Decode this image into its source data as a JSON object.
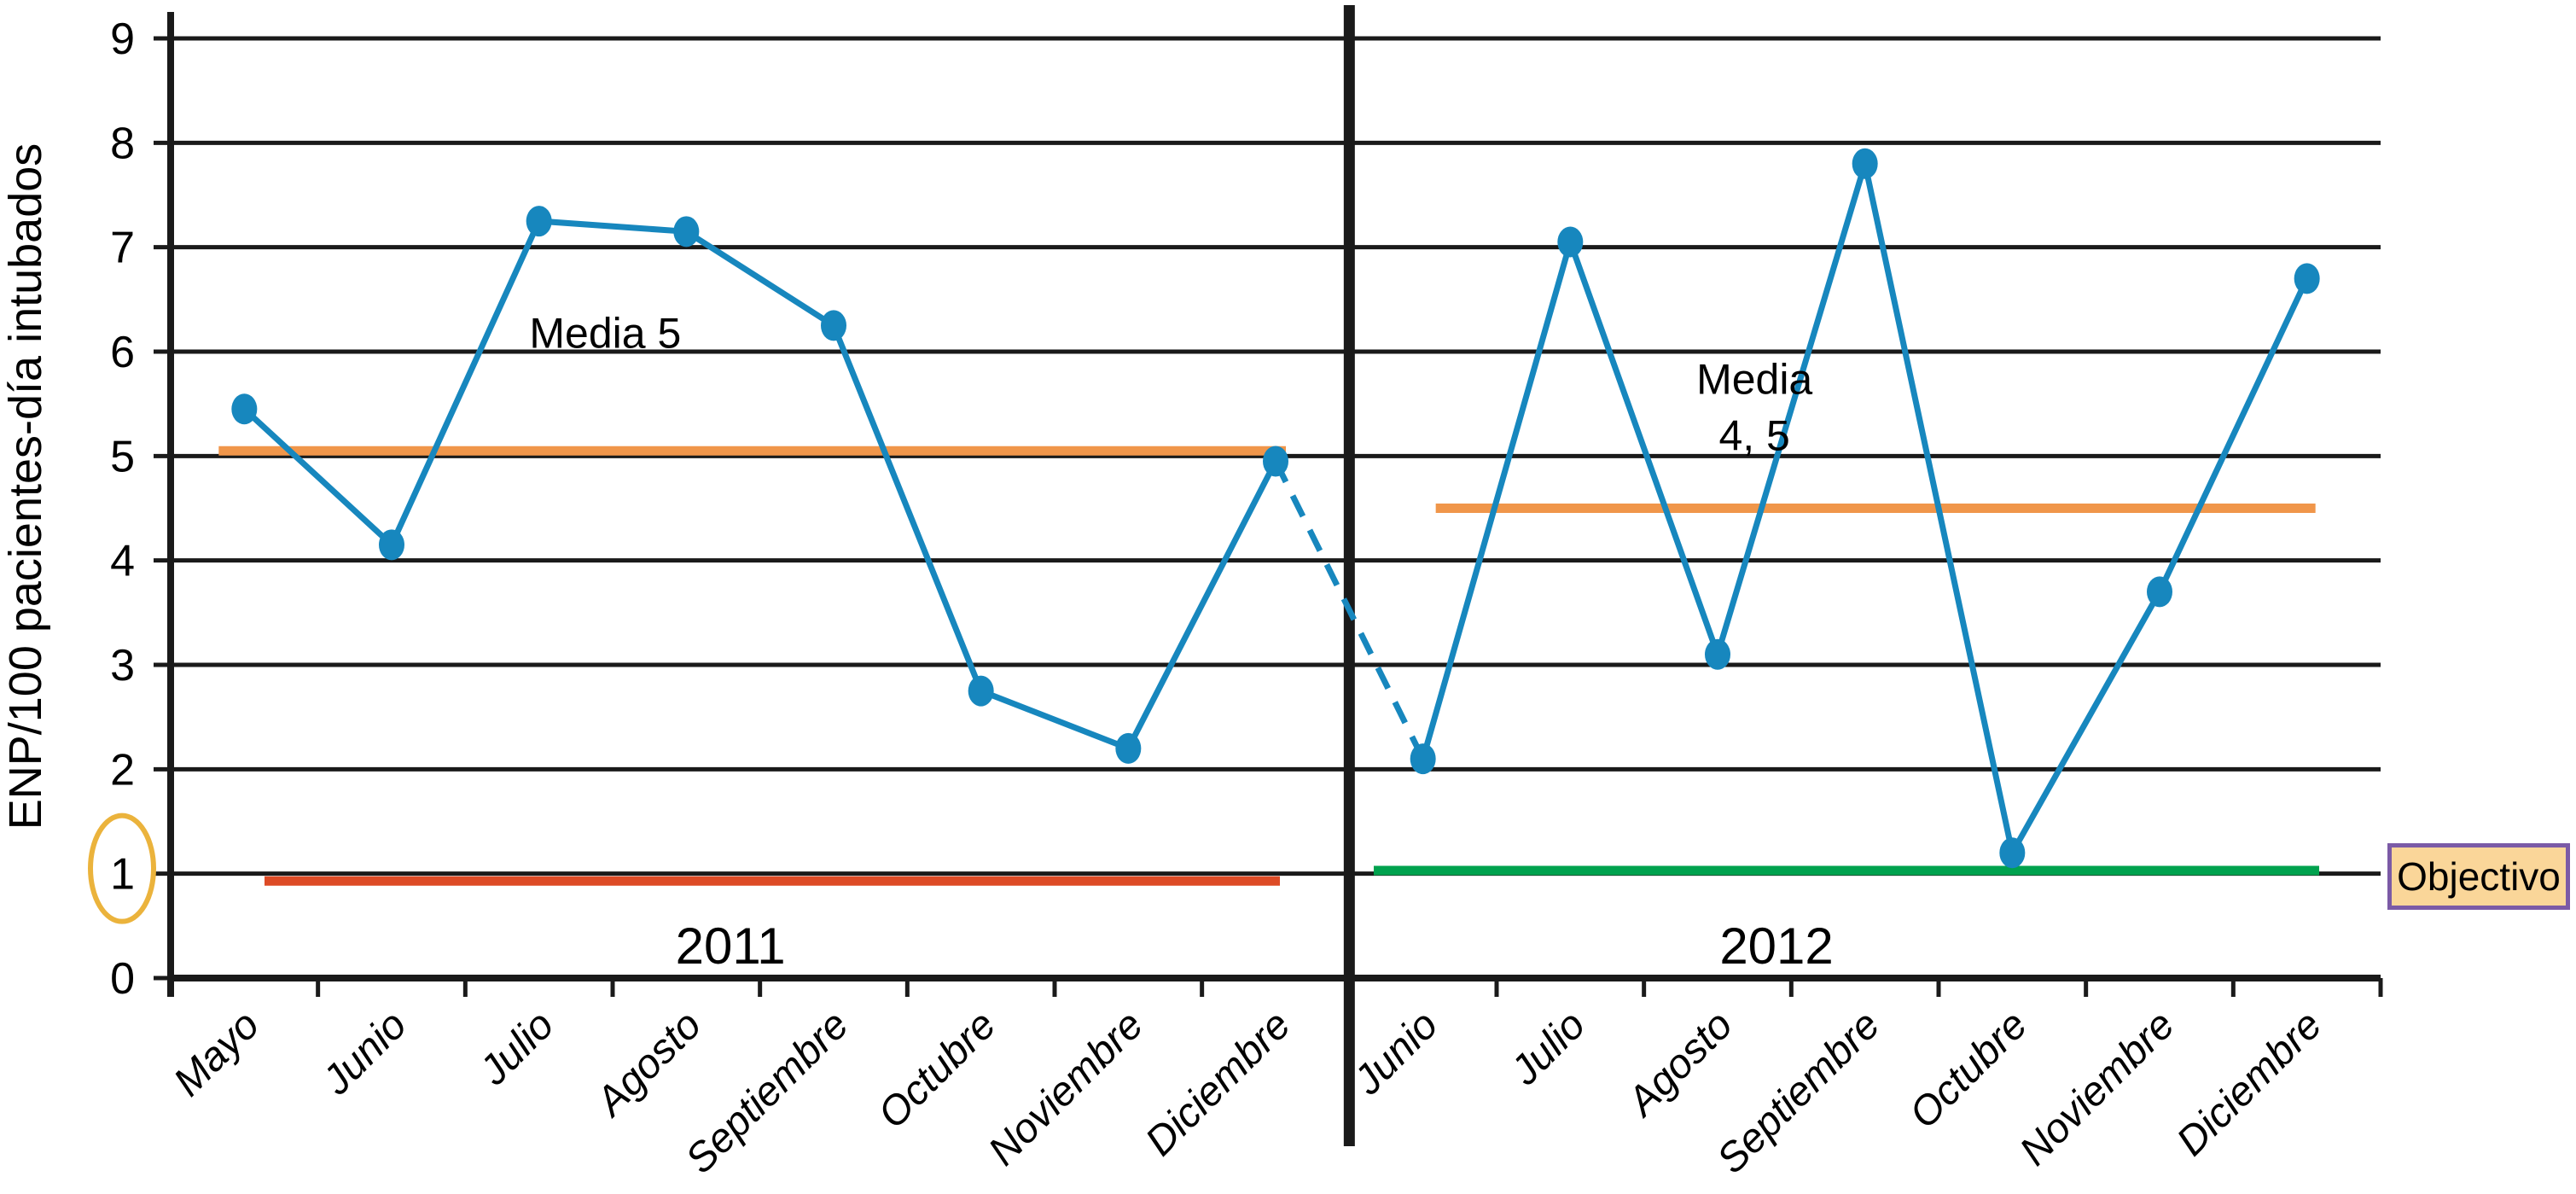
{
  "page": {
    "background": "#ffffff"
  },
  "chart_data": {
    "type": "line",
    "title": "",
    "ylabel": "ENP/100 pacientes-día intubados",
    "xlabel": "",
    "ylim": [
      0,
      9
    ],
    "ytick_step": 1,
    "circled_ytick": 1,
    "grid": "horizontal",
    "legend_position": "none",
    "x_slots": 15,
    "objective_box_label": "Objectivo",
    "groups": [
      {
        "year": "2011",
        "categories": [
          "Mayo",
          "Junio",
          "Julio",
          "Agosto",
          "Septiembre",
          "Octubre",
          "Noviembre",
          "Diciembre"
        ],
        "values": [
          5.45,
          4.15,
          7.25,
          7.15,
          6.25,
          2.75,
          2.2,
          4.95
        ],
        "media_label": "Media 5",
        "media_value": 5.05,
        "objective_value": 0.93,
        "objective_color": "#DD4B26"
      },
      {
        "year": "2012",
        "categories": [
          "Junio",
          "Julio",
          "Agosto",
          "Septiembre",
          "Octubre",
          "Noviembre",
          "Diciembre"
        ],
        "values": [
          2.1,
          7.05,
          3.1,
          7.8,
          1.2,
          3.7,
          6.7
        ],
        "media_label": "Media 4, 5",
        "media_value": 4.5,
        "objective_value": 1.03,
        "objective_color": "#00A24E"
      }
    ],
    "connector": {
      "style": "dashed",
      "from": "2011 Diciembre",
      "to": "2012 Junio"
    },
    "annotations": [
      {
        "kind": "media",
        "text": "Media 5",
        "month_index": 2.45,
        "value": 6.18
      },
      {
        "kind": "media",
        "text": "Media",
        "month_index": 10.25,
        "value": 5.74
      },
      {
        "kind": "media",
        "text": "4, 5",
        "month_index": 10.25,
        "value": 5.2
      },
      {
        "kind": "year",
        "text": "2011",
        "month_index": 3.3,
        "value": 0.31
      },
      {
        "kind": "year",
        "text": "2012",
        "month_index": 10.4,
        "value": 0.31
      }
    ],
    "colors": {
      "series": "#1787BE",
      "media": "#F0964A",
      "grid": "#1A1A1A",
      "divider": "#1A1A1A",
      "ellipse": "#EBB33C",
      "box_bg": "#FAD699",
      "box_border": "#7B5AA6",
      "text": "#000000"
    }
  }
}
